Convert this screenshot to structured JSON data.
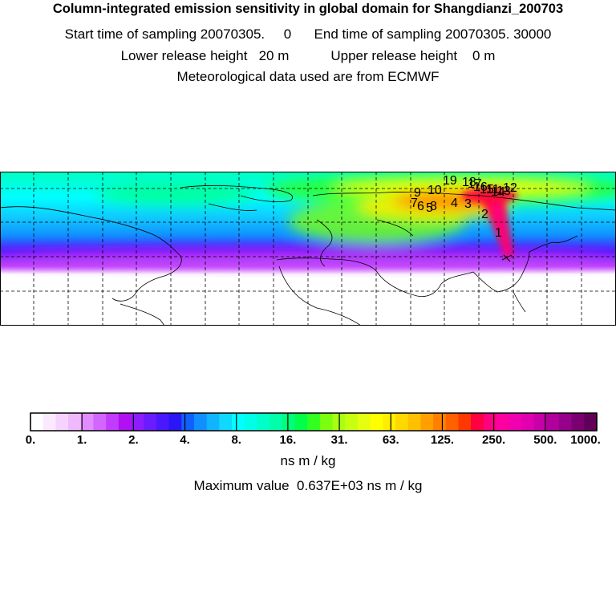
{
  "header": {
    "title": "Column-integrated emission sensitivity in global domain for Shangdianzi_200703",
    "line1": "Start time of sampling 20070305.     0      End time of sampling 20070305. 30000",
    "line2": "Lower release height   20 m           Upper release height    0 m",
    "line3": "Meteorological data used are from ECMWF"
  },
  "map": {
    "trajectory_labels": [
      "1",
      "2",
      "3",
      "4",
      "5",
      "6",
      "7",
      "8",
      "9",
      "10",
      "11",
      "12",
      "13",
      "14",
      "15",
      "16",
      "17",
      "18",
      "19"
    ],
    "receptor": "Shangdianzi"
  },
  "colorbar": {
    "tick_labels": [
      "0.",
      "1.",
      "2.",
      "4.",
      "8.",
      "16.",
      "31.",
      "63.",
      "125.",
      "250.",
      "500.",
      "1000."
    ],
    "colors": [
      "#ffffff",
      "#fbe9ff",
      "#f6d3ff",
      "#f0b9ff",
      "#e28dff",
      "#d366ff",
      "#c23cff",
      "#b010f2",
      "#8d1cff",
      "#6a1cff",
      "#4a18ff",
      "#2c16f8",
      "#1060ff",
      "#1090ff",
      "#10b4ff",
      "#10d8ff",
      "#00ffff",
      "#00ffe6",
      "#00ffc8",
      "#00ffa8",
      "#00ff7a",
      "#00ff4a",
      "#30ff20",
      "#7aff10",
      "#a8ff10",
      "#c8ff10",
      "#e6ff10",
      "#ffff00",
      "#ffee00",
      "#ffd800",
      "#ffc000",
      "#ffa000",
      "#ff8000",
      "#ff6000",
      "#ff3800",
      "#ff0040",
      "#ff0080",
      "#ff00a0",
      "#f000b0",
      "#e000b0",
      "#c800a8",
      "#b0009c",
      "#96008a",
      "#7a0070",
      "#600058"
    ],
    "units": "ns m / kg",
    "max_value_text": "Maximum value  0.637E+03 ns m / kg"
  }
}
